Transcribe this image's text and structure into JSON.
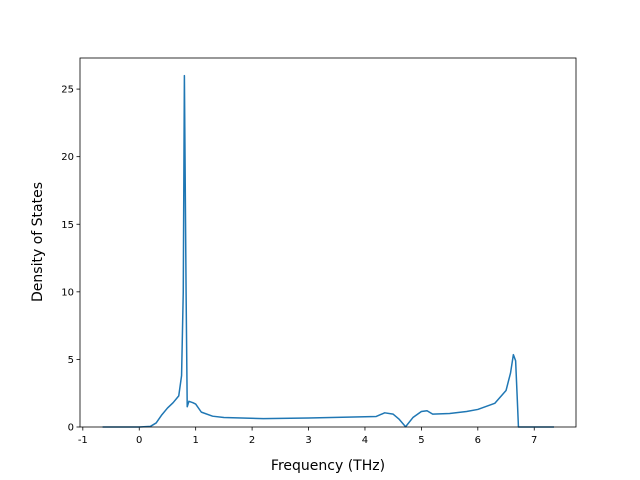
{
  "chart_data": {
    "type": "line",
    "x_label": "Frequency (THz)",
    "y_label": "Density of States",
    "x": [
      -0.65,
      0.0,
      0.2,
      0.3,
      0.4,
      0.5,
      0.6,
      0.7,
      0.75,
      0.78,
      0.8,
      0.83,
      0.85,
      0.88,
      0.95,
      1.0,
      1.1,
      1.3,
      1.5,
      2.2,
      3.0,
      4.2,
      4.35,
      4.5,
      4.6,
      4.72,
      4.85,
      5.0,
      5.1,
      5.2,
      5.5,
      5.8,
      6.0,
      6.3,
      6.5,
      6.58,
      6.63,
      6.67,
      6.7,
      6.72,
      7.35
    ],
    "series": [
      {
        "color": "#1f77b4",
        "values": [
          0,
          0,
          0.05,
          0.3,
          0.9,
          1.4,
          1.8,
          2.3,
          3.8,
          10,
          26,
          10,
          1.5,
          1.9,
          1.8,
          1.7,
          1.1,
          0.8,
          0.7,
          0.62,
          0.67,
          0.78,
          1.05,
          0.95,
          0.6,
          0.02,
          0.7,
          1.15,
          1.2,
          0.95,
          1.0,
          1.15,
          1.3,
          1.75,
          2.7,
          4.0,
          5.35,
          4.9,
          2.0,
          0,
          0
        ]
      }
    ],
    "xlim": [
      -1.05,
      7.74
    ],
    "ylim": [
      0,
      27.3
    ],
    "xticks": [
      -1,
      0,
      1,
      2,
      3,
      4,
      5,
      6,
      7
    ],
    "yticks": [
      0,
      5,
      10,
      15,
      20,
      25
    ]
  }
}
